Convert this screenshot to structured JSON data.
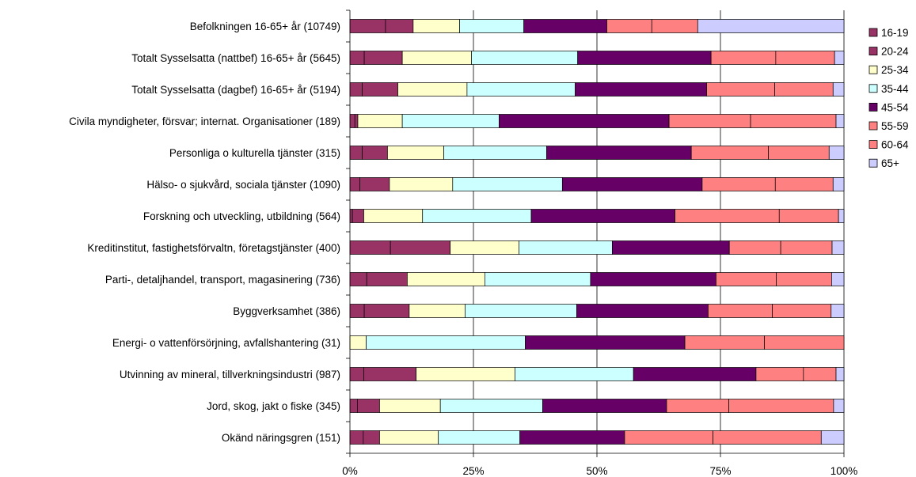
{
  "chart_data": {
    "type": "bar",
    "orientation": "horizontal",
    "stacked": "percent",
    "title": "",
    "xlabel": "",
    "ylabel": "",
    "xlim": [
      0,
      100
    ],
    "x_ticks": [
      "0%",
      "25%",
      "50%",
      "75%",
      "100%"
    ],
    "grid": "vertical",
    "legend": "right",
    "categories": [
      "Befolkningen 16-65+ år (10749)",
      "Totalt Sysselsatta (nattbef) 16-65+ år (5645)",
      "Totalt Sysselsatta (dagbef) 16-65+ år (5194)",
      "Civila myndigheter, försvar; internat. Organisationer (189)",
      "Personliga o kulturella tjänster (315)",
      "Hälso- o sjukvård, sociala tjänster (1090)",
      "Forskning och utveckling, utbildning (564)",
      "Kreditinstitut, fastighetsförvaltn, företagstjänster (400)",
      "Parti-, detaljhandel, transport, magasinering (736)",
      "Byggverksamhet (386)",
      "Energi- o vattenförsörjning, avfallshantering (31)",
      "Utvinning av mineral, tillverkningsindustri (987)",
      "Jord, skog, jakt o fiske (345)",
      "Okänd näringsgren (151)"
    ],
    "series": [
      {
        "name": "16-19",
        "color": "#993366",
        "values": [
          7.2,
          2.9,
          2.5,
          1.0,
          2.5,
          2.0,
          0.5,
          8.2,
          3.4,
          2.9,
          0.0,
          2.8,
          1.5,
          2.7
        ]
      },
      {
        "name": "20-24",
        "color": "#993366",
        "values": [
          5.6,
          7.7,
          7.2,
          0.6,
          5.1,
          6.0,
          2.3,
          12.1,
          8.2,
          9.1,
          0.0,
          10.6,
          4.5,
          3.3
        ]
      },
      {
        "name": "25-34",
        "color": "#FFFFCC",
        "values": [
          9.4,
          14.0,
          14.0,
          9.0,
          11.4,
          12.8,
          11.9,
          13.9,
          15.7,
          11.3,
          3.3,
          20.0,
          12.3,
          11.9
        ]
      },
      {
        "name": "35-44",
        "color": "#CCFFFF",
        "values": [
          13.0,
          21.5,
          21.9,
          19.6,
          20.8,
          22.2,
          22.0,
          18.9,
          21.4,
          22.6,
          32.2,
          24.0,
          20.7,
          16.5
        ]
      },
      {
        "name": "45-54",
        "color": "#660066",
        "values": [
          16.8,
          27.0,
          26.6,
          34.4,
          29.3,
          28.3,
          29.1,
          23.7,
          25.4,
          26.6,
          32.3,
          24.8,
          25.1,
          21.2
        ]
      },
      {
        "name": "55-59",
        "color": "#FF8080",
        "values": [
          9.1,
          13.1,
          13.8,
          16.5,
          15.6,
          14.8,
          21.1,
          10.4,
          12.2,
          13.0,
          16.1,
          9.6,
          12.6,
          17.9
        ]
      },
      {
        "name": "60-64",
        "color": "#FF8080",
        "values": [
          9.3,
          11.9,
          11.8,
          17.3,
          12.3,
          11.7,
          12.0,
          10.4,
          11.2,
          11.9,
          16.1,
          6.6,
          21.2,
          21.9
        ]
      },
      {
        "name": "65+",
        "color": "#CCCCFF",
        "values": [
          29.6,
          1.9,
          2.2,
          1.6,
          3.0,
          2.2,
          1.1,
          2.4,
          2.5,
          2.6,
          0.0,
          1.6,
          2.1,
          4.6
        ]
      }
    ]
  }
}
